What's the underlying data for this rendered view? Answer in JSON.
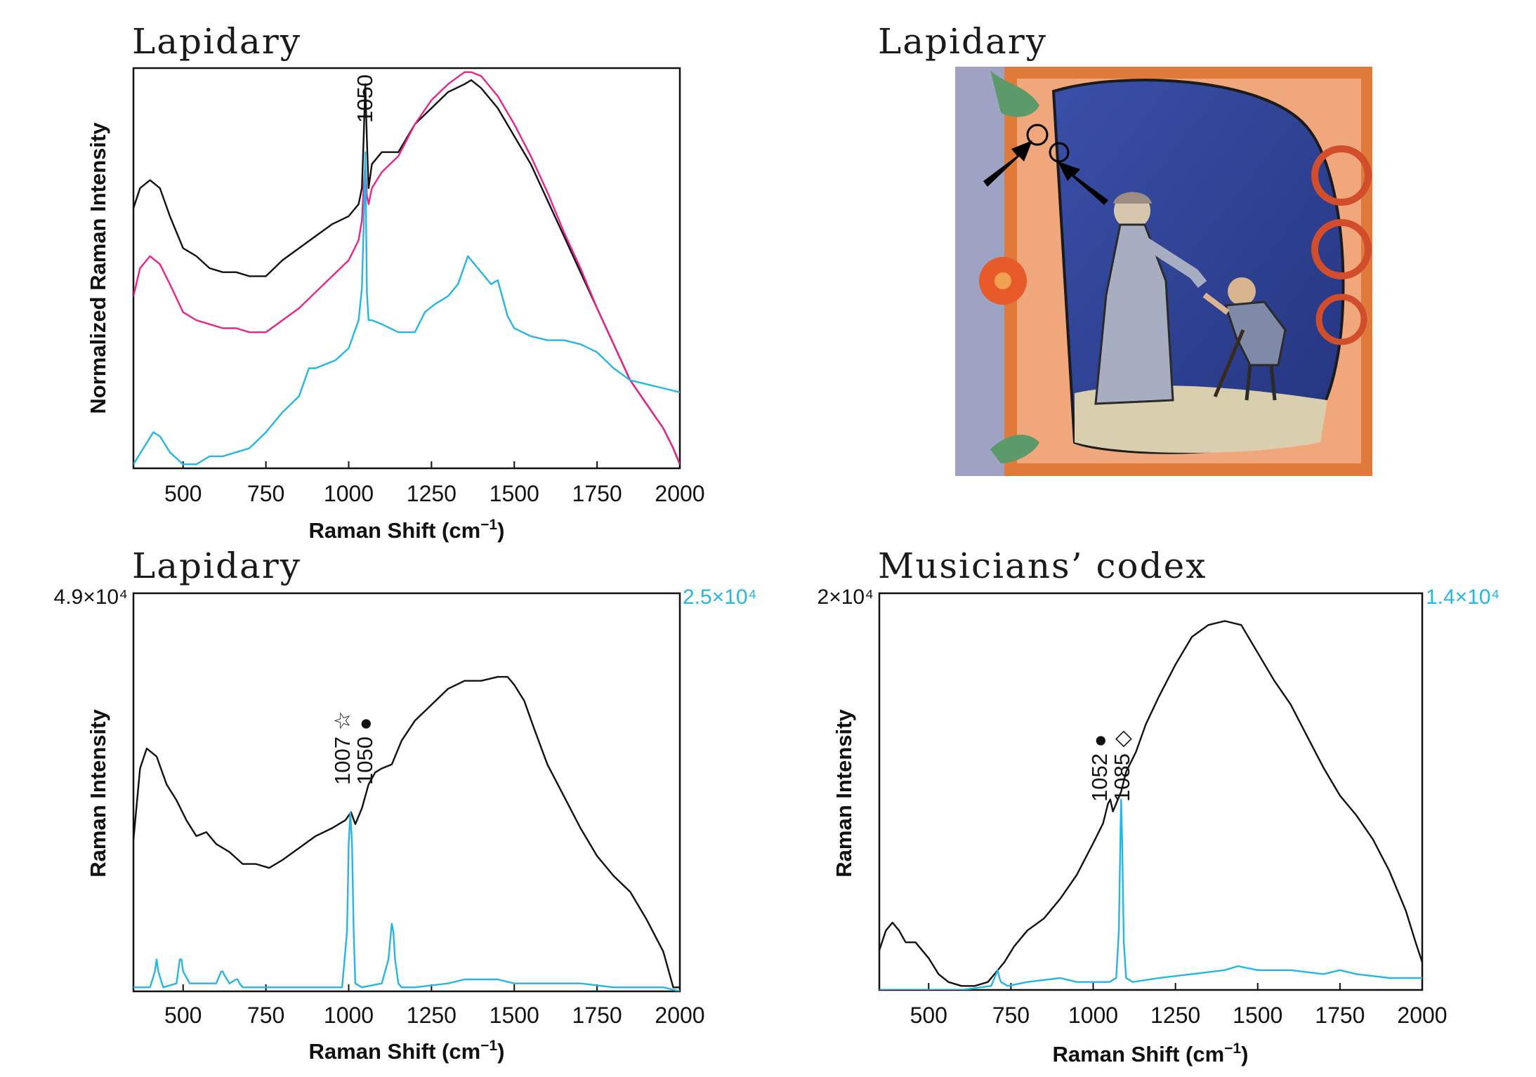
{
  "colors": {
    "black_series": "#111111",
    "magenta_series": "#e8248a",
    "cyan_series": "#27b5e3",
    "axis": "#111111"
  },
  "panels": {
    "a": {
      "title": "Lapidary",
      "xlabel": "Raman Shift (cm",
      "xlabel_sup": "−1",
      "xlabel_end": ")",
      "ylabel": "Normalized Raman Intensity",
      "annotation": "1050"
    },
    "b": {
      "title": "Lapidary",
      "arrow_icon": "black-arrow",
      "marker_icon": "open-circle"
    },
    "c": {
      "title": "Lapidary",
      "xlabel": "Raman Shift (cm",
      "xlabel_sup": "−1",
      "xlabel_end": ")",
      "ylabel": "Raman Intensity",
      "left_scale": "4.9×10⁴",
      "right_scale": "2.5×10⁴",
      "annotation_1": "1007",
      "annotation_1_symbol": "☆",
      "annotation_2": "1050",
      "annotation_2_symbol": "●"
    },
    "d": {
      "title": "Musicians’ codex",
      "xlabel": "Raman Shift (cm",
      "xlabel_sup": "−1",
      "xlabel_end": ")",
      "ylabel": "Raman Intensity",
      "left_scale": "2×10⁴",
      "right_scale": "1.4×10⁴",
      "annotation_1": "1052",
      "annotation_1_symbol": "●",
      "annotation_2": "1085",
      "annotation_2_symbol": "◇"
    }
  },
  "chart_data": [
    {
      "panel": "a",
      "type": "line",
      "title": "Lapidary",
      "xlabel": "Raman Shift (cm−1)",
      "ylabel": "Normalized Raman Intensity",
      "xlim": [
        350,
        2000
      ],
      "ylim": [
        0,
        1
      ],
      "xticks": [
        500,
        750,
        1000,
        1250,
        1500,
        1750,
        2000
      ],
      "yticks_shown": false,
      "annotations": [
        {
          "text": "1050",
          "x": 1050
        }
      ],
      "series": [
        {
          "color": "#111111",
          "x": [
            350,
            370,
            400,
            430,
            460,
            500,
            540,
            580,
            620,
            660,
            700,
            750,
            800,
            850,
            900,
            950,
            1000,
            1030,
            1040,
            1045,
            1050,
            1055,
            1060,
            1070,
            1100,
            1150,
            1200,
            1250,
            1300,
            1350,
            1370,
            1400,
            1450,
            1500,
            1550,
            1600,
            1650,
            1700,
            1750,
            1800,
            1850,
            1900,
            1950,
            1980,
            2000
          ],
          "y": [
            0.65,
            0.7,
            0.72,
            0.7,
            0.63,
            0.55,
            0.53,
            0.5,
            0.49,
            0.49,
            0.48,
            0.48,
            0.52,
            0.55,
            0.58,
            0.61,
            0.63,
            0.66,
            0.7,
            0.82,
            0.96,
            0.82,
            0.7,
            0.76,
            0.79,
            0.79,
            0.86,
            0.9,
            0.94,
            0.96,
            0.97,
            0.95,
            0.9,
            0.83,
            0.76,
            0.67,
            0.58,
            0.49,
            0.4,
            0.31,
            0.22,
            0.16,
            0.1,
            0.05,
            0.01
          ]
        },
        {
          "color": "#e8248a",
          "x": [
            350,
            370,
            400,
            430,
            460,
            500,
            540,
            580,
            620,
            660,
            700,
            750,
            800,
            850,
            900,
            950,
            1000,
            1030,
            1040,
            1045,
            1050,
            1055,
            1060,
            1070,
            1100,
            1150,
            1200,
            1250,
            1300,
            1350,
            1370,
            1400,
            1450,
            1500,
            1550,
            1600,
            1650,
            1700,
            1750,
            1800,
            1850,
            1900,
            1950,
            1980,
            2000
          ],
          "y": [
            0.43,
            0.5,
            0.53,
            0.51,
            0.46,
            0.39,
            0.37,
            0.36,
            0.35,
            0.35,
            0.34,
            0.34,
            0.37,
            0.4,
            0.44,
            0.48,
            0.52,
            0.57,
            0.62,
            0.7,
            0.76,
            0.68,
            0.66,
            0.7,
            0.74,
            0.78,
            0.86,
            0.92,
            0.96,
            0.99,
            0.99,
            0.98,
            0.93,
            0.86,
            0.78,
            0.69,
            0.59,
            0.5,
            0.4,
            0.31,
            0.22,
            0.16,
            0.1,
            0.05,
            0.01
          ]
        },
        {
          "color": "#27b5e3",
          "x": [
            350,
            380,
            410,
            430,
            460,
            500,
            540,
            580,
            620,
            660,
            700,
            750,
            800,
            850,
            880,
            900,
            930,
            960,
            1000,
            1030,
            1040,
            1045,
            1050,
            1055,
            1060,
            1070,
            1100,
            1150,
            1200,
            1230,
            1260,
            1300,
            1330,
            1360,
            1400,
            1430,
            1450,
            1460,
            1480,
            1500,
            1550,
            1600,
            1650,
            1700,
            1750,
            1800,
            1850,
            1900,
            1950,
            2000
          ],
          "y": [
            0.01,
            0.05,
            0.09,
            0.08,
            0.04,
            0.01,
            0.01,
            0.03,
            0.03,
            0.04,
            0.05,
            0.09,
            0.14,
            0.18,
            0.25,
            0.25,
            0.26,
            0.27,
            0.3,
            0.37,
            0.45,
            0.6,
            0.79,
            0.44,
            0.37,
            0.37,
            0.36,
            0.34,
            0.34,
            0.39,
            0.41,
            0.43,
            0.46,
            0.53,
            0.49,
            0.46,
            0.47,
            0.44,
            0.38,
            0.35,
            0.33,
            0.32,
            0.32,
            0.31,
            0.29,
            0.25,
            0.22,
            0.21,
            0.2,
            0.19
          ]
        }
      ]
    },
    {
      "panel": "c",
      "type": "line",
      "title": "Lapidary",
      "xlabel": "Raman Shift (cm−1)",
      "ylabel": "Raman Intensity",
      "xlim": [
        350,
        2000
      ],
      "xticks": [
        500,
        750,
        1000,
        1250,
        1500,
        1750,
        2000
      ],
      "left_axis_max": "4.9×10⁴",
      "right_axis_max": "2.5×10⁴",
      "annotations": [
        {
          "text": "1007",
          "symbol": "☆",
          "x": 1007
        },
        {
          "text": "1050",
          "symbol": "●",
          "x": 1050
        }
      ],
      "series": [
        {
          "color": "#111111",
          "x": [
            350,
            370,
            390,
            420,
            450,
            480,
            510,
            540,
            570,
            600,
            640,
            680,
            720,
            760,
            800,
            850,
            900,
            950,
            990,
            1007,
            1020,
            1040,
            1060,
            1080,
            1100,
            1130,
            1160,
            1200,
            1250,
            1300,
            1350,
            1400,
            1450,
            1480,
            1500,
            1530,
            1560,
            1600,
            1650,
            1700,
            1750,
            1800,
            1850,
            1900,
            1950,
            1980,
            2000
          ],
          "y": [
            0.38,
            0.56,
            0.61,
            0.59,
            0.52,
            0.48,
            0.43,
            0.39,
            0.4,
            0.37,
            0.35,
            0.32,
            0.32,
            0.31,
            0.33,
            0.36,
            0.39,
            0.41,
            0.43,
            0.45,
            0.42,
            0.46,
            0.52,
            0.55,
            0.56,
            0.57,
            0.63,
            0.68,
            0.72,
            0.76,
            0.78,
            0.78,
            0.79,
            0.79,
            0.77,
            0.73,
            0.66,
            0.57,
            0.49,
            0.41,
            0.34,
            0.29,
            0.25,
            0.18,
            0.1,
            0.01,
            0.01
          ]
        },
        {
          "color": "#27b5e3",
          "x": [
            350,
            400,
            415,
            420,
            425,
            440,
            480,
            490,
            495,
            500,
            520,
            600,
            615,
            620,
            625,
            640,
            660,
            665,
            670,
            680,
            700,
            800,
            900,
            980,
            995,
            1000,
            1005,
            1010,
            1015,
            1020,
            1040,
            1100,
            1120,
            1130,
            1135,
            1140,
            1150,
            1160,
            1200,
            1300,
            1350,
            1400,
            1450,
            1500,
            1600,
            1700,
            1800,
            1900,
            1950,
            2000
          ],
          "y": [
            0.01,
            0.01,
            0.05,
            0.08,
            0.05,
            0.01,
            0.02,
            0.08,
            0.08,
            0.05,
            0.02,
            0.02,
            0.05,
            0.05,
            0.04,
            0.02,
            0.03,
            0.03,
            0.02,
            0.01,
            0.01,
            0.01,
            0.01,
            0.01,
            0.15,
            0.37,
            0.45,
            0.37,
            0.15,
            0.02,
            0.01,
            0.02,
            0.08,
            0.17,
            0.15,
            0.08,
            0.02,
            0.01,
            0.01,
            0.02,
            0.03,
            0.03,
            0.03,
            0.02,
            0.02,
            0.02,
            0.01,
            0.01,
            0.01,
            0.0
          ]
        }
      ]
    },
    {
      "panel": "d",
      "type": "line",
      "title": "Musicians’ codex",
      "xlabel": "Raman Shift (cm−1)",
      "ylabel": "Raman Intensity",
      "xlim": [
        350,
        2000
      ],
      "xticks": [
        500,
        750,
        1000,
        1250,
        1500,
        1750,
        2000
      ],
      "left_axis_max": "2×10⁴",
      "right_axis_max": "1.4×10⁴",
      "annotations": [
        {
          "text": "1052",
          "symbol": "●",
          "x": 1052
        },
        {
          "text": "1085",
          "symbol": "◇",
          "x": 1085
        }
      ],
      "series": [
        {
          "color": "#111111",
          "x": [
            350,
            370,
            390,
            410,
            430,
            460,
            500,
            530,
            560,
            600,
            640,
            680,
            700,
            730,
            760,
            800,
            850,
            900,
            950,
            1000,
            1030,
            1045,
            1052,
            1060,
            1070,
            1085,
            1100,
            1130,
            1160,
            1200,
            1250,
            1300,
            1350,
            1400,
            1450,
            1500,
            1550,
            1600,
            1650,
            1700,
            1750,
            1800,
            1850,
            1900,
            1950,
            1980,
            2000
          ],
          "y": [
            0.1,
            0.15,
            0.17,
            0.15,
            0.12,
            0.12,
            0.08,
            0.04,
            0.02,
            0.01,
            0.01,
            0.02,
            0.04,
            0.07,
            0.11,
            0.15,
            0.18,
            0.23,
            0.29,
            0.37,
            0.42,
            0.47,
            0.48,
            0.45,
            0.47,
            0.5,
            0.55,
            0.6,
            0.67,
            0.74,
            0.82,
            0.89,
            0.92,
            0.93,
            0.92,
            0.85,
            0.78,
            0.72,
            0.64,
            0.56,
            0.49,
            0.44,
            0.38,
            0.3,
            0.2,
            0.12,
            0.07
          ]
        },
        {
          "color": "#27b5e3",
          "x": [
            350,
            600,
            690,
            700,
            710,
            715,
            720,
            740,
            800,
            900,
            950,
            1000,
            1050,
            1070,
            1078,
            1083,
            1085,
            1088,
            1093,
            1100,
            1120,
            1200,
            1300,
            1400,
            1440,
            1500,
            1600,
            1700,
            1750,
            1800,
            1900,
            2000
          ],
          "y": [
            0.0,
            0.0,
            0.01,
            0.03,
            0.05,
            0.03,
            0.02,
            0.01,
            0.02,
            0.03,
            0.02,
            0.02,
            0.02,
            0.03,
            0.15,
            0.4,
            0.48,
            0.38,
            0.12,
            0.03,
            0.02,
            0.03,
            0.04,
            0.05,
            0.06,
            0.05,
            0.05,
            0.04,
            0.05,
            0.04,
            0.03,
            0.03
          ]
        }
      ]
    }
  ]
}
